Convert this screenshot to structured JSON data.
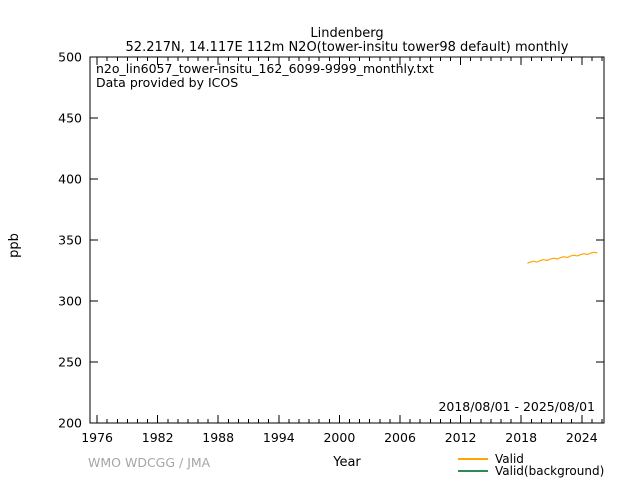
{
  "title": {
    "line1": "Lindenberg",
    "line2": "52.217N, 14.117E 112m    N2O(tower-insitu tower98 default) monthly"
  },
  "annotations": {
    "file": "n2o_lin6057_tower-insitu_162_6099-9999_monthly.txt",
    "provider": "Data provided by ICOS",
    "date_range": "2018/08/01 - 2025/08/01"
  },
  "footer": {
    "credit": "WMO WDCGG / JMA"
  },
  "legend": [
    {
      "label": "Valid",
      "color": "#FFA500"
    },
    {
      "label": "Valid(background)",
      "color": "#2E8B57"
    }
  ],
  "colors": {
    "valid_line": "#FFA500",
    "valid_background_line": "#2E8B57",
    "axis": "#000000",
    "credit_text": "#a6a6a6"
  },
  "chart_data": {
    "type": "line",
    "title": "Lindenberg",
    "subtitle": "52.217N, 14.117E 112m    N2O(tower-insitu tower98 default) monthly",
    "xlabel": "Year",
    "ylabel": "ppb",
    "xlim": [
      1975.3,
      2026.2
    ],
    "ylim": [
      200,
      500
    ],
    "xticks": [
      1976,
      1982,
      1988,
      1994,
      2000,
      2006,
      2012,
      2018,
      2024
    ],
    "minor_xtick_interval_years": 1,
    "yticks": [
      200,
      250,
      300,
      350,
      400,
      450,
      500
    ],
    "grid": false,
    "legend_position": "bottom-right",
    "series": [
      {
        "name": "Valid",
        "color": "#FFA500",
        "x0_decimal_year": 2018.625,
        "dx_decimal_year": 0.0833333,
        "values": [
          330.9,
          331.2,
          331.6,
          331.8,
          332.0,
          332.2,
          332.4,
          332.6,
          332.5,
          332.3,
          332.1,
          332.0,
          332.1,
          332.4,
          332.8,
          333.0,
          333.2,
          333.5,
          333.7,
          333.9,
          333.8,
          333.6,
          333.4,
          333.3,
          333.4,
          333.7,
          334.1,
          334.3,
          334.5,
          334.7,
          334.9,
          335.1,
          335.0,
          334.8,
          334.6,
          334.5,
          334.6,
          334.9,
          335.3,
          335.5,
          335.7,
          335.9,
          336.1,
          336.3,
          336.2,
          336.0,
          335.8,
          335.7,
          335.8,
          336.1,
          336.6,
          336.8,
          337.0,
          337.2,
          337.4,
          337.6,
          337.5,
          337.3,
          337.1,
          337.0,
          337.1,
          337.4,
          337.8,
          338.0,
          338.2,
          338.4,
          338.6,
          338.8,
          338.7,
          338.5,
          338.3,
          338.2,
          338.3,
          338.6,
          339.0,
          339.2,
          339.4,
          339.6,
          339.8,
          340.0,
          339.9,
          339.7,
          339.6,
          339.5
        ]
      },
      {
        "name": "Valid(background)",
        "color": "#2E8B57",
        "x0_decimal_year": 2018.625,
        "dx_decimal_year": 0.0833333,
        "values": []
      }
    ]
  }
}
